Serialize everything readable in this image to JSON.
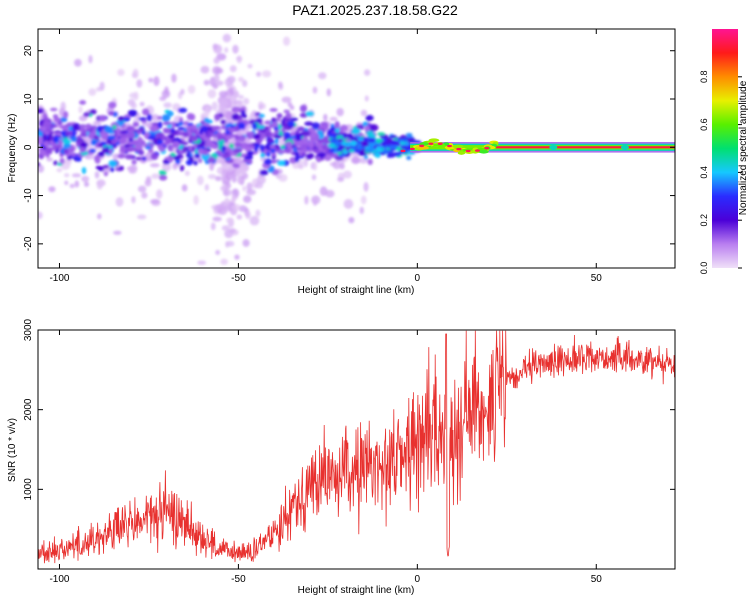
{
  "title": "PAZ1.2025.237.18.58.G22",
  "colors": {
    "snr_line": "#e8312f",
    "axis": "#000000",
    "colorbar": [
      "#f0e0f8",
      "#b97ef0",
      "#4b00d8",
      "#2a2cff",
      "#16c8ff",
      "#00e070",
      "#58f000",
      "#e8f000",
      "#ff8c00",
      "#ff1a1a",
      "#ff1493"
    ]
  },
  "chart_data": [
    {
      "type": "heatmap",
      "title": "PAZ1.2025.237.18.58.G22",
      "xlabel": "Height of straight line (km)",
      "ylabel": "Frequency (Hz)",
      "xlim": [
        -106,
        72
      ],
      "ylim": [
        -25,
        24.5
      ],
      "xticks": [
        -100,
        -50,
        0,
        50
      ],
      "xtick_labels": [
        "-100",
        "-50",
        "0",
        "50"
      ],
      "yticks": [
        -20,
        -10,
        0,
        10,
        20
      ],
      "ytick_labels": [
        "-20",
        "-10",
        "0",
        "10",
        "20"
      ],
      "colorbar": {
        "label": "Normalized spectral amplitude",
        "range": [
          0,
          1
        ],
        "ticks": [
          0.0,
          0.2,
          0.4,
          0.6,
          0.8
        ],
        "tick_labels": [
          "0.0",
          "0.2",
          "0.4",
          "0.6",
          "0.8"
        ]
      },
      "segments": [
        {
          "x_start": -106,
          "x_end": -20,
          "freq_center": 1.5,
          "freq_spread": 4,
          "amplitude": 0.15
        },
        {
          "x_start": -20,
          "x_end": 0,
          "freq_center": 0.2,
          "freq_spread": 1,
          "amplitude": 0.35
        },
        {
          "x_start": 0,
          "x_end": 72,
          "freq_center": 0.0,
          "freq_spread": 0.5,
          "amplitude": 0.9
        }
      ]
    },
    {
      "type": "line",
      "xlabel": "Height of straight line (km)",
      "ylabel": "SNR (10 * v/v)",
      "xlim": [
        -106,
        72
      ],
      "ylim": [
        0,
        3000
      ],
      "xticks": [
        -100,
        -50,
        0,
        50
      ],
      "xtick_labels": [
        "-100",
        "-50",
        "0",
        "50"
      ],
      "yticks": [
        1000,
        2000,
        3000
      ],
      "ytick_labels": [
        "1000",
        "2000",
        "3000"
      ],
      "series": [
        {
          "x": [
            -106,
            -100,
            -95,
            -90,
            -85,
            -80,
            -75,
            -70,
            -65,
            -60,
            -55,
            -50,
            -45,
            -40,
            -35,
            -30,
            -25,
            -20,
            -15,
            -10,
            -5,
            0,
            5,
            8,
            10,
            15,
            20,
            25,
            30,
            35,
            40,
            45,
            50,
            55,
            60,
            65,
            70,
            72
          ],
          "y": [
            200,
            250,
            300,
            380,
            480,
            560,
            650,
            700,
            600,
            400,
            230,
            200,
            220,
            480,
            800,
            1050,
            1150,
            1200,
            1250,
            1330,
            1400,
            1600,
            1750,
            1500,
            1800,
            2000,
            2150,
            2330,
            2480,
            2580,
            2620,
            2650,
            2660,
            2650,
            2640,
            2620,
            2600,
            2580
          ]
        }
      ]
    }
  ]
}
